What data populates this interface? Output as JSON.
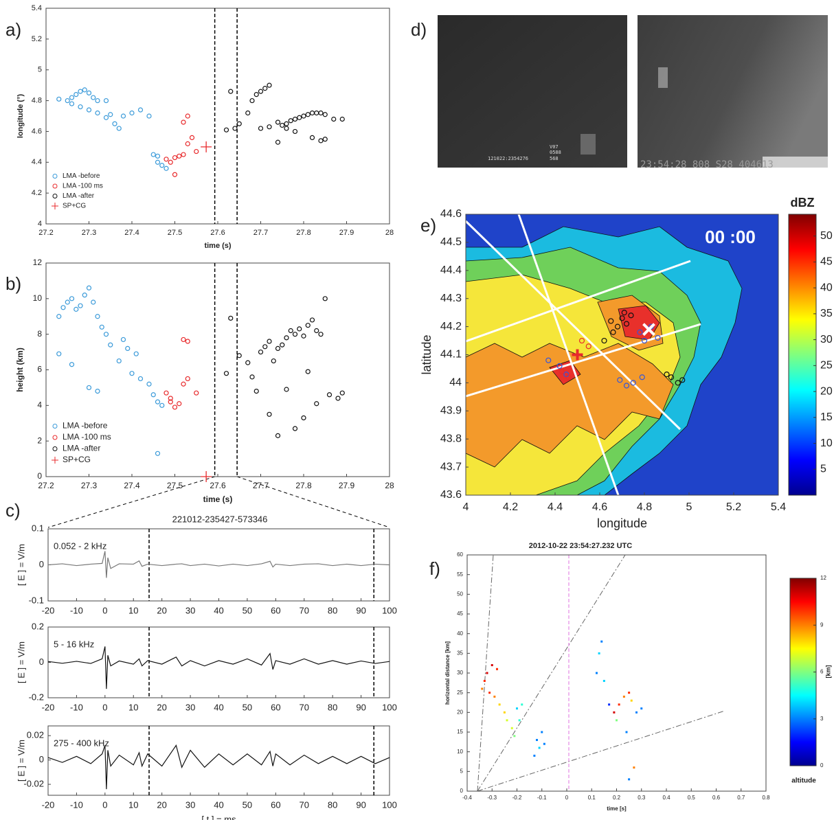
{
  "chart_data": [
    {
      "type": "scatter",
      "panel_label": "a)",
      "x_label": "time (s)",
      "y_label": "longitude (°)",
      "xlim": [
        27.2,
        28
      ],
      "ylim": [
        4,
        5.4
      ],
      "xticks": [
        27.2,
        27.3,
        27.4,
        27.5,
        27.6,
        27.7,
        27.8,
        27.9,
        28
      ],
      "yticks": [
        4,
        4.2,
        4.4,
        4.6,
        4.8,
        5,
        5.2,
        5.4
      ],
      "vlines": [
        27.593,
        27.645
      ],
      "legend": "lower left",
      "series": [
        {
          "name": "LMA -before",
          "color": "#3a9ad9",
          "marker": "circle",
          "x": [
            27.23,
            27.25,
            27.26,
            27.27,
            27.28,
            27.29,
            27.3,
            27.31,
            27.32,
            27.34,
            27.26,
            27.28,
            27.3,
            27.32,
            27.34,
            27.36,
            27.37,
            27.38,
            27.4,
            27.42,
            27.44,
            27.45,
            27.46,
            27.47,
            27.48,
            27.46,
            27.35
          ],
          "values": [
            4.81,
            4.8,
            4.82,
            4.84,
            4.86,
            4.87,
            4.85,
            4.82,
            4.8,
            4.8,
            4.78,
            4.76,
            4.74,
            4.72,
            4.69,
            4.65,
            4.62,
            4.7,
            4.72,
            4.74,
            4.7,
            4.45,
            4.4,
            4.38,
            4.36,
            4.44,
            4.71
          ]
        },
        {
          "name": "LMA -100 ms",
          "color": "#e8292b",
          "marker": "circle",
          "x": [
            27.48,
            27.49,
            27.5,
            27.51,
            27.5,
            27.52,
            27.53,
            27.54,
            27.52,
            27.53,
            27.55
          ],
          "values": [
            4.42,
            4.4,
            4.43,
            4.44,
            4.32,
            4.45,
            4.52,
            4.56,
            4.66,
            4.7,
            4.47
          ]
        },
        {
          "name": "LMA -after",
          "color": "#111111",
          "marker": "circle",
          "x": [
            27.63,
            27.62,
            27.64,
            27.65,
            27.67,
            27.68,
            27.69,
            27.7,
            27.71,
            27.72,
            27.7,
            27.72,
            27.74,
            27.75,
            27.76,
            27.77,
            27.78,
            27.79,
            27.8,
            27.81,
            27.82,
            27.83,
            27.84,
            27.85,
            27.76,
            27.78,
            27.82,
            27.84,
            27.85,
            27.74,
            27.87,
            27.89
          ],
          "values": [
            4.86,
            4.61,
            4.62,
            4.65,
            4.72,
            4.8,
            4.84,
            4.86,
            4.88,
            4.9,
            4.62,
            4.63,
            4.66,
            4.64,
            4.65,
            4.67,
            4.68,
            4.69,
            4.7,
            4.71,
            4.72,
            4.72,
            4.72,
            4.71,
            4.62,
            4.6,
            4.56,
            4.54,
            4.55,
            4.53,
            4.68,
            4.68
          ]
        },
        {
          "name": "SP+CG",
          "color": "#e8292b",
          "marker": "plus",
          "x": [
            27.573
          ],
          "values": [
            4.5
          ]
        }
      ]
    },
    {
      "type": "scatter",
      "panel_label": "b)",
      "x_label": "time (s)",
      "y_label": "height (km)",
      "xlim": [
        27.2,
        28
      ],
      "ylim": [
        0,
        12
      ],
      "xticks": [
        27.2,
        27.3,
        27.4,
        27.5,
        27.6,
        27.7,
        27.8,
        27.9,
        28
      ],
      "yticks": [
        0,
        2,
        4,
        6,
        8,
        10,
        12
      ],
      "vlines": [
        27.593,
        27.645
      ],
      "legend": "lower left",
      "series": [
        {
          "name": "LMA -before",
          "color": "#3a9ad9",
          "marker": "circle",
          "x": [
            27.23,
            27.24,
            27.25,
            27.26,
            27.27,
            27.28,
            27.29,
            27.3,
            27.31,
            27.32,
            27.33,
            27.34,
            27.35,
            27.23,
            27.26,
            27.3,
            27.32,
            27.37,
            27.39,
            27.4,
            27.42,
            27.44,
            27.45,
            27.46,
            27.47,
            27.46,
            27.38,
            27.41
          ],
          "values": [
            9,
            9.5,
            9.8,
            10,
            9.4,
            9.6,
            10.2,
            10.6,
            9.8,
            9,
            8.4,
            8,
            7.4,
            6.9,
            6.3,
            5,
            4.8,
            6.5,
            7.2,
            5.8,
            5.5,
            5.2,
            4.6,
            4.2,
            4,
            1.3,
            7.7,
            6.9
          ]
        },
        {
          "name": "LMA -100 ms",
          "color": "#e8292b",
          "marker": "circle",
          "x": [
            27.48,
            27.49,
            27.5,
            27.51,
            27.52,
            27.53,
            27.52,
            27.53,
            27.55,
            27.49
          ],
          "values": [
            4.7,
            4.2,
            3.9,
            4.1,
            5.2,
            5.5,
            7.7,
            7.6,
            4.7,
            4.4
          ]
        },
        {
          "name": "LMA -after",
          "color": "#111111",
          "marker": "circle",
          "x": [
            27.62,
            27.63,
            27.65,
            27.67,
            27.68,
            27.69,
            27.7,
            27.71,
            27.72,
            27.73,
            27.74,
            27.75,
            27.76,
            27.77,
            27.78,
            27.79,
            27.8,
            27.81,
            27.82,
            27.83,
            27.84,
            27.85,
            27.72,
            27.74,
            27.78,
            27.8,
            27.83,
            27.86,
            27.88,
            27.89,
            27.76,
            27.81
          ],
          "values": [
            5.8,
            8.9,
            6.8,
            6.4,
            5.6,
            4.8,
            7,
            7.3,
            7.6,
            6.5,
            7.2,
            7.4,
            7.8,
            8.2,
            8,
            8.3,
            7.9,
            8.5,
            8.8,
            8.2,
            8,
            10,
            3.5,
            2.3,
            2.7,
            3.3,
            4.1,
            4.6,
            4.4,
            4.7,
            4.9,
            5.9
          ]
        },
        {
          "name": "SP+CG",
          "color": "#e8292b",
          "marker": "plus",
          "x": [
            27.573
          ],
          "values": [
            0
          ]
        }
      ]
    },
    {
      "type": "line",
      "panel_label": "c)",
      "title": "221012-235427-573346",
      "text_label": "0.052 - 2 kHz",
      "y_label": "[ E ] = V/m",
      "xlim": [
        -20,
        100
      ],
      "ylim": [
        -0.1,
        0.1
      ],
      "xticks": [
        -20,
        -10,
        0,
        10,
        20,
        30,
        40,
        50,
        60,
        70,
        80,
        90,
        100
      ],
      "yticks": [
        -0.1,
        0,
        0.1
      ],
      "vlines": [
        15.5,
        94.5
      ],
      "color": "#777777",
      "x": [
        -20,
        -15,
        -10,
        -5,
        -1,
        0,
        0.5,
        1,
        2,
        5,
        10,
        12,
        13,
        15,
        20,
        25,
        27,
        30,
        35,
        40,
        45,
        50,
        55,
        58,
        59,
        60,
        65,
        70,
        75,
        80,
        85,
        90,
        95,
        100
      ],
      "values": [
        0,
        0.003,
        -0.002,
        0.002,
        0.004,
        0.038,
        -0.036,
        0.02,
        -0.01,
        0.003,
        0.002,
        0.011,
        -0.004,
        0.002,
        -0.002,
        0.002,
        0.003,
        -0.002,
        0.002,
        -0.003,
        0.002,
        -0.002,
        0.003,
        0.01,
        -0.006,
        0.002,
        -0.002,
        0.002,
        0.003,
        -0.002,
        0.002,
        -0.002,
        0.002,
        0
      ]
    },
    {
      "type": "line",
      "text_label": "5 - 16 kHz",
      "y_label": "[ E ] = V/m",
      "xlim": [
        -20,
        100
      ],
      "ylim": [
        -0.2,
        0.2
      ],
      "xticks": [
        -20,
        -10,
        0,
        10,
        20,
        30,
        40,
        50,
        60,
        70,
        80,
        90,
        100
      ],
      "yticks": [
        -0.2,
        0,
        0.2
      ],
      "vlines": [
        15.5,
        94.5
      ],
      "color": "#111111",
      "x": [
        -20,
        -15,
        -10,
        -5,
        -1,
        0,
        0.5,
        1,
        2,
        5,
        10,
        12,
        13,
        15,
        20,
        25,
        27,
        30,
        35,
        40,
        45,
        50,
        55,
        58,
        59,
        60,
        65,
        70,
        75,
        80,
        85,
        90,
        95,
        100
      ],
      "values": [
        0.005,
        -0.005,
        0.006,
        -0.006,
        0.02,
        0.09,
        -0.15,
        0.04,
        -0.02,
        0.008,
        -0.01,
        0.02,
        -0.02,
        0.01,
        -0.01,
        0.03,
        -0.02,
        0.01,
        -0.02,
        0.01,
        -0.01,
        0.02,
        -0.015,
        0.05,
        -0.04,
        0.01,
        -0.01,
        0.02,
        -0.01,
        0.01,
        -0.01,
        0.008,
        -0.006,
        0.005
      ]
    },
    {
      "type": "line",
      "text_label": "275 - 400 kHz",
      "y_label": "[ E ] = V/m",
      "x_label": "[ t ] = ms",
      "xlim": [
        -20,
        100
      ],
      "ylim": [
        -0.029,
        0.028
      ],
      "xticks": [
        -20,
        -10,
        0,
        10,
        20,
        30,
        40,
        50,
        60,
        70,
        80,
        90,
        100
      ],
      "yticks": [
        -0.02,
        0,
        0.02
      ],
      "vlines": [
        15.5,
        94.5
      ],
      "color": "#111111",
      "x": [
        -20,
        -15,
        -10,
        -5,
        -1,
        0,
        0.5,
        1,
        2,
        5,
        10,
        12,
        13,
        15,
        20,
        25,
        27,
        30,
        35,
        40,
        45,
        50,
        55,
        58,
        59,
        60,
        65,
        70,
        75,
        80,
        85,
        90,
        95,
        100
      ],
      "values": [
        0.002,
        -0.002,
        0.003,
        -0.003,
        0.005,
        0.012,
        -0.024,
        0.008,
        -0.005,
        0.004,
        -0.004,
        0.006,
        -0.005,
        0.005,
        -0.005,
        0.012,
        -0.006,
        0.008,
        -0.006,
        0.005,
        -0.004,
        0.005,
        -0.004,
        0.007,
        -0.005,
        0.005,
        -0.004,
        0.004,
        -0.003,
        0.003,
        -0.003,
        0.003,
        -0.003,
        0.002
      ]
    },
    {
      "type": "image",
      "panel_label": "d)",
      "left_overlay": [
        "V07",
        "0588",
        "121022:2354276",
        "568"
      ],
      "right_overlay": "23:54:28  808  S28  404613"
    },
    {
      "type": "map",
      "panel_label": "e)",
      "x_label": "longitude",
      "y_label": "latitude",
      "time_label": "00 :00",
      "xlim": [
        4,
        5.4
      ],
      "ylim": [
        43.6,
        44.6
      ],
      "xticks": [
        4,
        4.2,
        4.4,
        4.6,
        4.8,
        5,
        5.2,
        5.4
      ],
      "yticks": [
        43.6,
        43.7,
        43.8,
        43.9,
        44,
        44.1,
        44.2,
        44.3,
        44.4,
        44.5,
        44.6
      ],
      "colorbar": {
        "label": "dBZ",
        "lim": [
          0,
          54.2
        ],
        "ticks": [
          5,
          10,
          15,
          20,
          25,
          30,
          35,
          40,
          45,
          50
        ]
      },
      "series": [
        {
          "color": "#111111",
          "marker": "circle",
          "x": [
            4.65,
            4.68,
            4.7,
            4.72,
            4.74,
            4.9,
            4.92,
            4.95,
            4.97,
            4.62,
            4.66,
            4.71
          ],
          "values": [
            44.22,
            44.2,
            44.23,
            44.21,
            44.24,
            44.03,
            44.02,
            44.0,
            44.01,
            44.15,
            44.18,
            44.25
          ]
        },
        {
          "color": "#3355dd",
          "marker": "circle",
          "x": [
            4.78,
            4.8,
            4.83,
            4.86,
            4.69,
            4.72,
            4.75,
            4.79,
            4.42,
            4.45,
            4.37
          ],
          "values": [
            44.18,
            44.15,
            44.2,
            44.16,
            44.01,
            43.99,
            44.0,
            44.02,
            44.06,
            44.03,
            44.08
          ]
        },
        {
          "color": "#e8292b",
          "marker": "circle",
          "x": [
            4.43,
            4.46,
            4.52,
            4.55
          ],
          "values": [
            44.04,
            44.02,
            44.15,
            44.13
          ]
        },
        {
          "color": "#e8292b",
          "marker": "plus",
          "x": [
            4.5
          ],
          "values": [
            44.1
          ]
        },
        {
          "color": "#ffffff",
          "marker": "x",
          "x": [
            4.82
          ],
          "values": [
            44.19
          ]
        }
      ]
    },
    {
      "type": "scatter",
      "title": "2012-10-22  23:54:27.232 UTC",
      "panel_label": "f)",
      "x_label": "time [s]",
      "y_label": "horizontal distance [km]",
      "xlim": [
        -0.4,
        0.8
      ],
      "ylim": [
        0,
        60
      ],
      "xticks": [
        -0.4,
        -0.3,
        -0.2,
        -0.1,
        0,
        0.1,
        0.2,
        0.3,
        0.4,
        0.5,
        0.6,
        0.7,
        0.8
      ],
      "yticks": [
        0,
        5,
        10,
        15,
        20,
        25,
        30,
        35,
        40,
        45,
        50,
        55,
        60
      ],
      "colorbar": {
        "label": "[km]",
        "sublabel": "altitude",
        "lim": [
          0,
          12
        ],
        "ticks": [
          0,
          3,
          6,
          9,
          12
        ]
      },
      "x": [
        -0.33,
        -0.32,
        -0.3,
        -0.28,
        -0.34,
        -0.31,
        -0.29,
        -0.27,
        -0.25,
        -0.24,
        -0.22,
        -0.21,
        -0.2,
        -0.19,
        -0.18,
        -0.12,
        -0.11,
        -0.1,
        -0.09,
        -0.13,
        0.12,
        0.13,
        0.14,
        0.15,
        0.17,
        0.19,
        0.21,
        0.23,
        0.25,
        0.26,
        0.2,
        0.24,
        0.28,
        0.3,
        0.25,
        0.27
      ],
      "values": [
        28,
        30,
        32,
        31,
        26,
        25,
        24,
        22,
        20,
        18,
        16,
        14,
        21,
        18,
        22,
        13,
        11,
        15,
        12,
        9,
        30,
        35,
        38,
        28,
        22,
        20,
        22,
        24,
        25,
        23,
        18,
        15,
        20,
        21,
        3,
        6
      ],
      "altitude": [
        10,
        11,
        11,
        10,
        9,
        10,
        9,
        8,
        8,
        7,
        7,
        6,
        4,
        5,
        5,
        3,
        4,
        3,
        3,
        3,
        3,
        4,
        3,
        4,
        2,
        11,
        10,
        9,
        10,
        8,
        6,
        3,
        3,
        3,
        3,
        9
      ]
    }
  ]
}
